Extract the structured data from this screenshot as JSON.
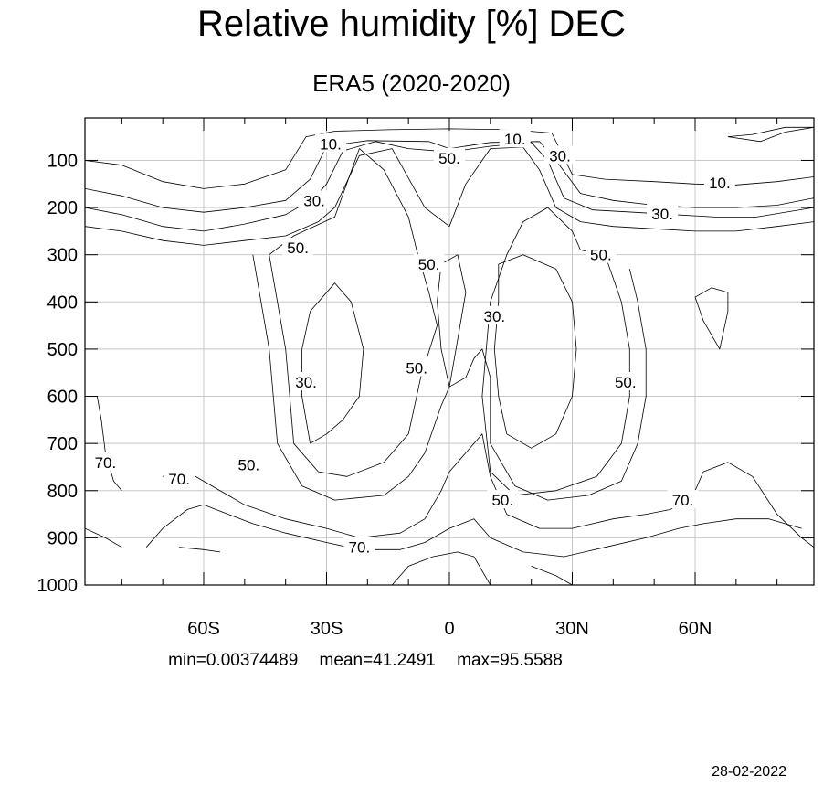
{
  "chart_data": {
    "type": "contour",
    "title": "Relative humidity [%] DEC",
    "subtitle": "ERA5 (2020-2020)",
    "x_ticks": [
      {
        "value": -60,
        "label": "60S"
      },
      {
        "value": -30,
        "label": "30S"
      },
      {
        "value": 0,
        "label": "0"
      },
      {
        "value": 30,
        "label": "30N"
      },
      {
        "value": 60,
        "label": "60N"
      }
    ],
    "y_ticks": [
      {
        "value": 100,
        "label": "100"
      },
      {
        "value": 200,
        "label": "200"
      },
      {
        "value": 300,
        "label": "300"
      },
      {
        "value": 400,
        "label": "400"
      },
      {
        "value": 500,
        "label": "500"
      },
      {
        "value": 600,
        "label": "600"
      },
      {
        "value": 700,
        "label": "700"
      },
      {
        "value": 800,
        "label": "800"
      },
      {
        "value": 900,
        "label": "900"
      },
      {
        "value": 1000,
        "label": "1000"
      }
    ],
    "xlim": [
      -89,
      89
    ],
    "ylim": [
      1000,
      10
    ],
    "y_inverted": true,
    "grid": true,
    "contour_levels": [
      10,
      20,
      30,
      40,
      50,
      60,
      70,
      80,
      90
    ],
    "contour_labels": [
      {
        "text": "10.",
        "x": -29,
        "y": 65
      },
      {
        "text": "50.",
        "x": 0,
        "y": 95
      },
      {
        "text": "10.",
        "x": 16,
        "y": 55
      },
      {
        "text": "30.",
        "x": 27,
        "y": 90
      },
      {
        "text": "10.",
        "x": 66,
        "y": 148
      },
      {
        "text": "30.",
        "x": -33,
        "y": 185
      },
      {
        "text": "30.",
        "x": 52,
        "y": 213
      },
      {
        "text": "50.",
        "x": -37,
        "y": 285
      },
      {
        "text": "50.",
        "x": -5,
        "y": 320
      },
      {
        "text": "50.",
        "x": 37,
        "y": 300
      },
      {
        "text": "30.",
        "x": 11,
        "y": 430
      },
      {
        "text": "50.",
        "x": -8,
        "y": 540
      },
      {
        "text": "30.",
        "x": -35,
        "y": 570
      },
      {
        "text": "50.",
        "x": 43,
        "y": 570
      },
      {
        "text": "50.",
        "x": -49,
        "y": 745
      },
      {
        "text": "70.",
        "x": -84,
        "y": 740
      },
      {
        "text": "70.",
        "x": -66,
        "y": 775
      },
      {
        "text": "50.",
        "x": 13,
        "y": 820
      },
      {
        "text": "70.",
        "x": 57,
        "y": 820
      },
      {
        "text": "70.",
        "x": -22,
        "y": 920
      }
    ],
    "contours": [
      {
        "level": 10,
        "points": [
          [
            -89,
            100
          ],
          [
            -80,
            110
          ],
          [
            -70,
            145
          ],
          [
            -60,
            160
          ],
          [
            -50,
            150
          ],
          [
            -40,
            120
          ],
          [
            -35,
            50
          ],
          [
            -28,
            38
          ],
          [
            -15,
            35
          ],
          [
            0,
            33
          ],
          [
            15,
            35
          ],
          [
            25,
            42
          ],
          [
            30,
            130
          ],
          [
            38,
            140
          ],
          [
            50,
            145
          ],
          [
            60,
            150
          ],
          [
            70,
            152
          ],
          [
            80,
            145
          ],
          [
            89,
            135
          ]
        ]
      },
      {
        "level": 20,
        "points": [
          [
            -89,
            160
          ],
          [
            -80,
            175
          ],
          [
            -70,
            200
          ],
          [
            -60,
            210
          ],
          [
            -50,
            200
          ],
          [
            -40,
            185
          ],
          [
            -34,
            140
          ],
          [
            -30,
            70
          ],
          [
            -20,
            58
          ],
          [
            -5,
            60
          ],
          [
            0,
            75
          ],
          [
            10,
            62
          ],
          [
            22,
            60
          ],
          [
            26,
            100
          ],
          [
            32,
            170
          ],
          [
            40,
            185
          ],
          [
            50,
            195
          ],
          [
            60,
            200
          ],
          [
            70,
            200
          ],
          [
            80,
            195
          ],
          [
            89,
            180
          ]
        ]
      },
      {
        "level": 30,
        "points": [
          [
            -89,
            200
          ],
          [
            -80,
            215
          ],
          [
            -70,
            240
          ],
          [
            -60,
            250
          ],
          [
            -50,
            235
          ],
          [
            -40,
            215
          ],
          [
            -33,
            180
          ],
          [
            -30,
            150
          ],
          [
            -26,
            80
          ],
          [
            -18,
            60
          ],
          [
            -10,
            75
          ],
          [
            0,
            82
          ],
          [
            10,
            70
          ],
          [
            20,
            62
          ],
          [
            24,
            100
          ],
          [
            28,
            180
          ],
          [
            35,
            205
          ],
          [
            45,
            210
          ],
          [
            55,
            215
          ],
          [
            65,
            220
          ],
          [
            75,
            220
          ],
          [
            89,
            200
          ]
        ]
      },
      {
        "level": 40,
        "points": [
          [
            -89,
            240
          ],
          [
            -80,
            250
          ],
          [
            -70,
            270
          ],
          [
            -60,
            280
          ],
          [
            -50,
            270
          ],
          [
            -40,
            260
          ],
          [
            -32,
            230
          ],
          [
            -28,
            200
          ],
          [
            -22,
            90
          ],
          [
            -14,
            75
          ],
          [
            -6,
            200
          ],
          [
            0,
            240
          ],
          [
            4,
            150
          ],
          [
            10,
            75
          ],
          [
            18,
            72
          ],
          [
            22,
            120
          ],
          [
            26,
            200
          ],
          [
            32,
            230
          ],
          [
            40,
            240
          ],
          [
            50,
            245
          ],
          [
            60,
            250
          ],
          [
            70,
            250
          ],
          [
            80,
            240
          ],
          [
            89,
            230
          ]
        ]
      },
      {
        "level": 50,
        "points": [
          [
            -44,
            300
          ],
          [
            -42,
            400
          ],
          [
            -40,
            500
          ],
          [
            -39,
            600
          ],
          [
            -38,
            700
          ],
          [
            -32,
            760
          ],
          [
            -25,
            770
          ],
          [
            -16,
            740
          ],
          [
            -10,
            680
          ],
          [
            -7,
            560
          ],
          [
            -3,
            450
          ],
          [
            -5,
            380
          ],
          [
            -8,
            290
          ],
          [
            -10,
            220
          ],
          [
            -16,
            120
          ],
          [
            -22,
            75
          ],
          [
            -28,
            220
          ],
          [
            -38,
            260
          ],
          [
            -44,
            300
          ]
        ]
      },
      {
        "level": 50,
        "points": [
          [
            32,
            290
          ],
          [
            38,
            300
          ],
          [
            42,
            400
          ],
          [
            44,
            500
          ],
          [
            44,
            600
          ],
          [
            42,
            700
          ],
          [
            36,
            770
          ],
          [
            26,
            800
          ],
          [
            16,
            810
          ],
          [
            10,
            760
          ],
          [
            8,
            600
          ],
          [
            10,
            400
          ],
          [
            14,
            300
          ],
          [
            18,
            230
          ],
          [
            24,
            200
          ],
          [
            30,
            250
          ],
          [
            32,
            290
          ]
        ]
      },
      {
        "level": 30,
        "points": [
          [
            -34,
            700
          ],
          [
            -30,
            680
          ],
          [
            -26,
            650
          ],
          [
            -22,
            600
          ],
          [
            -21,
            500
          ],
          [
            -24,
            400
          ],
          [
            -28,
            360
          ],
          [
            -34,
            420
          ],
          [
            -36,
            500
          ],
          [
            -36,
            600
          ],
          [
            -34,
            700
          ]
        ]
      },
      {
        "level": 30,
        "points": [
          [
            12,
            320
          ],
          [
            18,
            300
          ],
          [
            26,
            330
          ],
          [
            30,
            400
          ],
          [
            31,
            500
          ],
          [
            30,
            600
          ],
          [
            26,
            680
          ],
          [
            20,
            710
          ],
          [
            14,
            680
          ],
          [
            12,
            600
          ],
          [
            11,
            500
          ],
          [
            12,
            400
          ],
          [
            12,
            320
          ]
        ]
      },
      {
        "level": 40,
        "points": [
          [
            -2,
            320
          ],
          [
            2,
            300
          ],
          [
            4,
            380
          ],
          [
            2,
            480
          ],
          [
            0,
            580
          ],
          [
            -2,
            500
          ],
          [
            -3,
            400
          ],
          [
            -2,
            320
          ]
        ]
      },
      {
        "level": 60,
        "points": [
          [
            -48,
            300
          ],
          [
            -46,
            400
          ],
          [
            -44,
            500
          ],
          [
            -43,
            600
          ],
          [
            -42,
            700
          ],
          [
            -36,
            790
          ],
          [
            -28,
            820
          ],
          [
            -16,
            810
          ],
          [
            -10,
            770
          ],
          [
            -6,
            720
          ],
          [
            -2,
            620
          ],
          [
            0,
            580
          ],
          [
            4,
            560
          ],
          [
            6,
            520
          ],
          [
            8,
            500
          ],
          [
            10,
            560
          ],
          [
            10,
            700
          ],
          [
            16,
            790
          ],
          [
            24,
            820
          ],
          [
            34,
            810
          ],
          [
            42,
            780
          ],
          [
            46,
            700
          ],
          [
            48,
            600
          ],
          [
            48,
            500
          ],
          [
            46,
            400
          ],
          [
            44,
            330
          ]
        ]
      },
      {
        "level": 70,
        "points": [
          [
            -86,
            600
          ],
          [
            -85,
            650
          ],
          [
            -84,
            720
          ],
          [
            -82,
            780
          ],
          [
            -80,
            800
          ]
        ]
      },
      {
        "level": 70,
        "points": [
          [
            -70,
            770
          ],
          [
            -64,
            760
          ],
          [
            -58,
            790
          ],
          [
            -50,
            830
          ],
          [
            -40,
            860
          ],
          [
            -30,
            880
          ],
          [
            -22,
            900
          ],
          [
            -12,
            890
          ],
          [
            -6,
            860
          ],
          [
            -2,
            800
          ],
          [
            0,
            760
          ],
          [
            4,
            720
          ],
          [
            8,
            680
          ],
          [
            10,
            770
          ],
          [
            14,
            850
          ],
          [
            22,
            880
          ],
          [
            30,
            880
          ],
          [
            40,
            860
          ],
          [
            48,
            850
          ],
          [
            54,
            840
          ],
          [
            60,
            800
          ],
          [
            62,
            760
          ],
          [
            68,
            740
          ],
          [
            74,
            770
          ],
          [
            80,
            850
          ],
          [
            86,
            900
          ],
          [
            89,
            920
          ]
        ]
      },
      {
        "level": 80,
        "points": [
          [
            -89,
            880
          ],
          [
            -84,
            900
          ],
          [
            -80,
            920
          ]
        ]
      },
      {
        "level": 80,
        "points": [
          [
            -74,
            920
          ],
          [
            -70,
            880
          ],
          [
            -64,
            840
          ],
          [
            -60,
            830
          ],
          [
            -54,
            850
          ],
          [
            -48,
            870
          ],
          [
            -40,
            890
          ],
          [
            -30,
            910
          ],
          [
            -22,
            925
          ],
          [
            -12,
            925
          ],
          [
            -6,
            910
          ],
          [
            0,
            880
          ],
          [
            6,
            860
          ],
          [
            10,
            900
          ],
          [
            18,
            930
          ],
          [
            28,
            940
          ],
          [
            38,
            920
          ],
          [
            48,
            900
          ],
          [
            56,
            880
          ],
          [
            62,
            870
          ],
          [
            70,
            860
          ],
          [
            78,
            860
          ],
          [
            86,
            880
          ]
        ]
      },
      {
        "level": 90,
        "points": [
          [
            -66,
            920
          ],
          [
            -60,
            925
          ],
          [
            -56,
            930
          ]
        ]
      },
      {
        "level": 90,
        "points": [
          [
            -14,
            1000
          ],
          [
            -10,
            960
          ],
          [
            -4,
            940
          ],
          [
            2,
            930
          ],
          [
            6,
            940
          ],
          [
            10,
            1000
          ]
        ]
      },
      {
        "level": 90,
        "points": [
          [
            20,
            960
          ],
          [
            26,
            980
          ],
          [
            30,
            1000
          ]
        ]
      },
      {
        "level": 10,
        "points": [
          [
            60,
            390
          ],
          [
            64,
            370
          ],
          [
            68,
            380
          ],
          [
            68,
            420
          ],
          [
            66,
            500
          ],
          [
            62,
            440
          ],
          [
            60,
            390
          ]
        ]
      },
      {
        "level": 10,
        "points": [
          [
            68,
            50
          ],
          [
            74,
            45
          ],
          [
            82,
            30
          ],
          [
            89,
            30
          ],
          [
            82,
            40
          ],
          [
            76,
            60
          ],
          [
            68,
            50
          ]
        ]
      }
    ],
    "statistics": {
      "min": "min=0.00374489",
      "mean": "mean=41.2491",
      "max": "max=95.5588"
    },
    "date": "28-02-2022"
  }
}
